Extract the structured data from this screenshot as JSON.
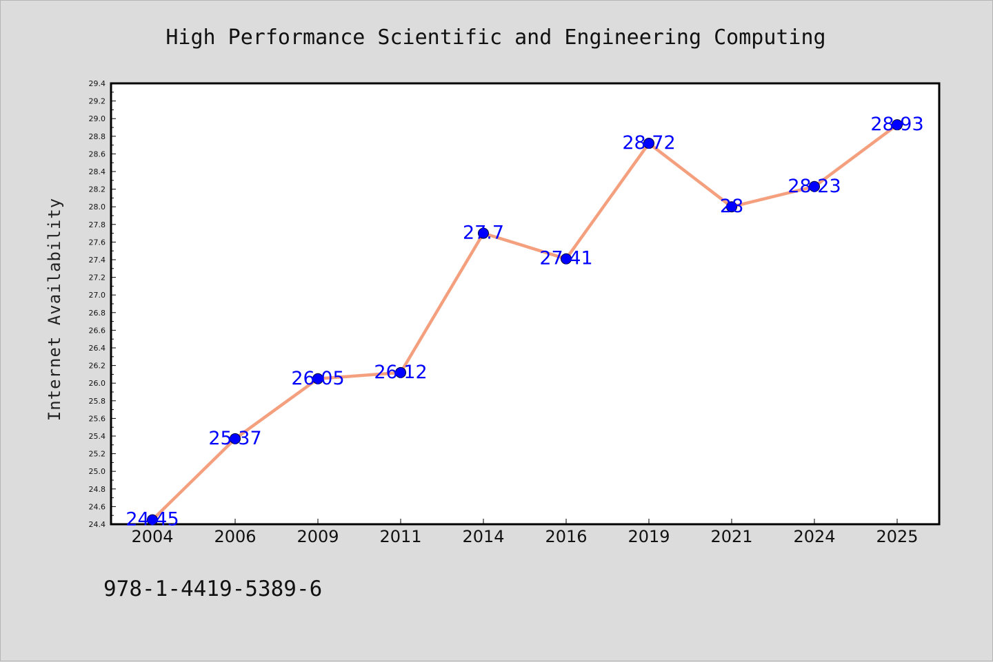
{
  "chart_data": {
    "type": "line",
    "title": "High Performance Scientific and Engineering Computing",
    "xlabel": "",
    "ylabel": "Internet Availability",
    "categories": [
      "2004",
      "2006",
      "2009",
      "2011",
      "2014",
      "2016",
      "2019",
      "2021",
      "2024",
      "2025"
    ],
    "values": [
      24.45,
      25.37,
      26.05,
      26.12,
      27.7,
      27.41,
      28.72,
      28.0,
      28.23,
      28.93
    ],
    "data_labels": [
      "24.45",
      "25.37",
      "26.05",
      "26.12",
      "27.7",
      "27.41",
      "28.72",
      "28",
      "28.23",
      "28.93"
    ],
    "ylim": [
      24.4,
      29.4
    ],
    "yticks": [
      "24.4",
      "24.6",
      "24.8",
      "25.0",
      "25.2",
      "25.4",
      "25.6",
      "25.8",
      "26.0",
      "26.2",
      "26.4",
      "26.6",
      "26.8",
      "27.0",
      "27.2",
      "27.4",
      "27.6",
      "27.8",
      "28.0",
      "28.2",
      "28.4",
      "28.6",
      "28.8",
      "29.0",
      "29.2",
      "29.4"
    ],
    "grid": false,
    "line_color": "#f4a07e",
    "marker_color": "#0000ff",
    "label_color": "#0000ff"
  },
  "footer": {
    "isbn": "978-1-4419-5389-6"
  }
}
